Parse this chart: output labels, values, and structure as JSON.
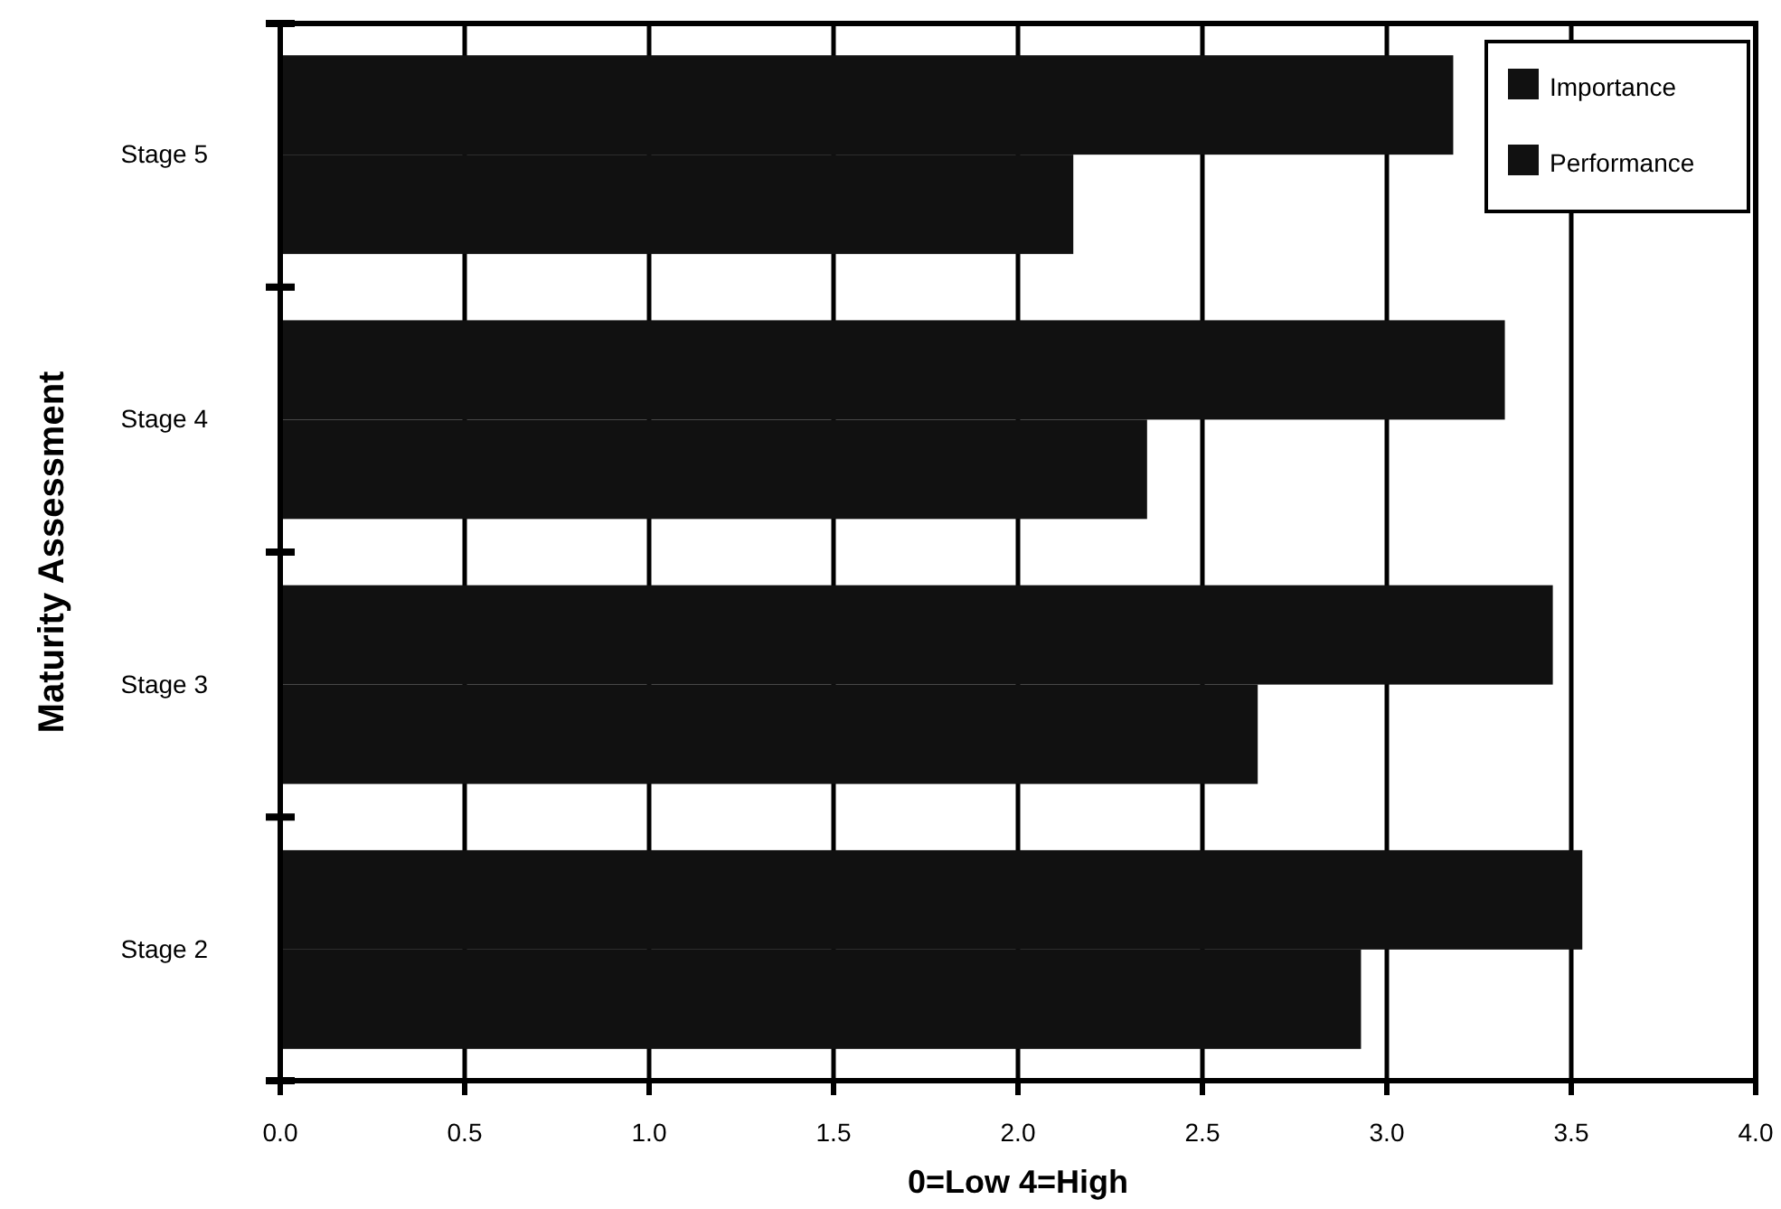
{
  "chart_data": {
    "type": "bar",
    "orientation": "horizontal",
    "xlabel": "0=Low 4=High",
    "ylabel": "Maturity Assessment",
    "categories": [
      "Stage 5",
      "Stage 4",
      "Stage 3",
      "Stage 2"
    ],
    "series": [
      {
        "name": "Importance",
        "color": "#111111",
        "values": [
          3.18,
          3.32,
          3.45,
          3.53
        ]
      },
      {
        "name": "Performance",
        "color": "#111111",
        "values": [
          2.15,
          2.35,
          2.65,
          2.93
        ]
      }
    ],
    "xlim": [
      0,
      4
    ],
    "xticks": [
      {
        "value": 0,
        "label": "0.0"
      },
      {
        "value": 0.5,
        "label": "0.5"
      },
      {
        "value": 1,
        "label": "1.0"
      },
      {
        "value": 1.5,
        "label": "1.5"
      },
      {
        "value": 2,
        "label": "2.0"
      },
      {
        "value": 2.5,
        "label": "2.5"
      },
      {
        "value": 3,
        "label": "3.0"
      },
      {
        "value": 3.5,
        "label": "3.5"
      },
      {
        "value": 4,
        "label": "4.0"
      }
    ],
    "grid": "x",
    "legend": "top right"
  }
}
